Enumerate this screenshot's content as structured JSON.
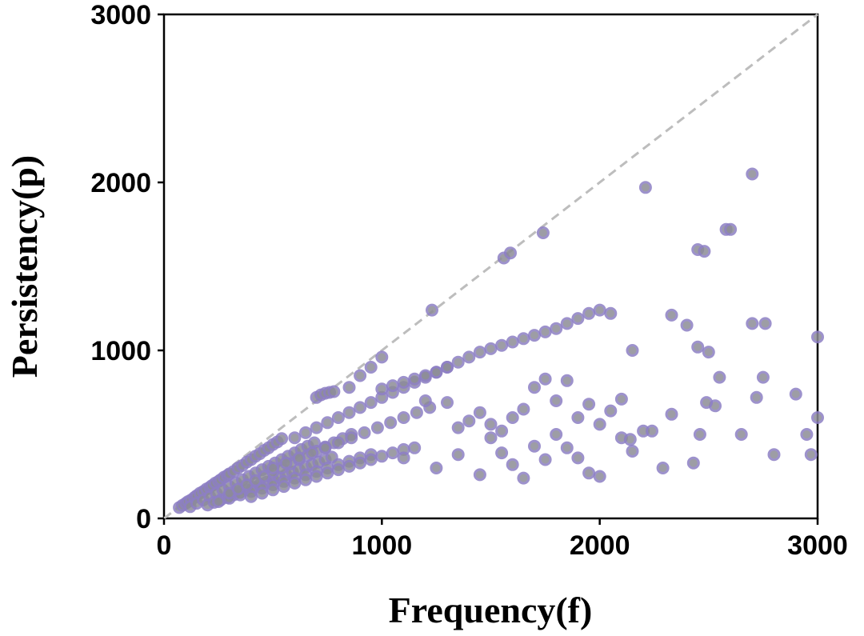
{
  "chart_data": {
    "type": "scatter",
    "title": "",
    "xlabel": "Frequency(f)",
    "ylabel": "Persistency(p)",
    "xlim": [
      0,
      3000
    ],
    "ylim": [
      0,
      3000
    ],
    "x_ticks": [
      "0",
      "1000",
      "2000",
      "3000"
    ],
    "y_ticks": [
      "0",
      "1000",
      "2000",
      "3000"
    ],
    "grid": false,
    "legend": "none",
    "reference_line": {
      "style": "dashed",
      "from": [
        0,
        0
      ],
      "to": [
        3000,
        3000
      ],
      "color": "#bdbdbd"
    },
    "marker": {
      "fill": "#8c8c96",
      "edge": "#8d7fc4",
      "opacity": 0.85
    },
    "series": [
      {
        "x": [
          70,
          85,
          100,
          110,
          125,
          140,
          150,
          165,
          180,
          195,
          210,
          220,
          235,
          250,
          260,
          275,
          290,
          300,
          320,
          340,
          360,
          380,
          400,
          420,
          440,
          460,
          480,
          500,
          520,
          540,
          120,
          150,
          180,
          210,
          240,
          270,
          300,
          330,
          360,
          390,
          420,
          450,
          480,
          510,
          540,
          570,
          600,
          630,
          660,
          690,
          200,
          230,
          260,
          290,
          320,
          350,
          380,
          410,
          440,
          470,
          500,
          530,
          560,
          590,
          620,
          650,
          680,
          710,
          740,
          770,
          250,
          300,
          350,
          400,
          450,
          500,
          550,
          600,
          650,
          700,
          750,
          800,
          850,
          900,
          950,
          300,
          340,
          380,
          420,
          460,
          500,
          540,
          580,
          620,
          660,
          700,
          740,
          780,
          820,
          860,
          400,
          450,
          500,
          550,
          600,
          650,
          700,
          750,
          800,
          850,
          900,
          950,
          1000,
          1050,
          1100,
          500,
          560,
          620,
          680,
          740,
          800,
          860,
          920,
          980,
          1040,
          1100,
          1160,
          1220,
          600,
          650,
          700,
          750,
          800,
          850,
          900,
          950,
          1000,
          1050,
          1100,
          1150,
          1200,
          1250,
          1300,
          700,
          720,
          740,
          760,
          780,
          850,
          900,
          950,
          1000,
          1000,
          1050,
          1100,
          1150,
          1200,
          1250,
          1300,
          1350,
          1400,
          1450,
          1500,
          1550,
          1600,
          1650,
          1700,
          1750,
          1800,
          1850,
          1900,
          1950,
          2000,
          2050,
          1230,
          1560,
          1590,
          1740,
          2210,
          2700,
          2580,
          2450,
          2480,
          1200,
          1300,
          1350,
          1400,
          1450,
          1500,
          1550,
          1600,
          1650,
          1700,
          1750,
          1800,
          1850,
          1900,
          1950,
          2000,
          2050,
          2100,
          2150,
          1100,
          1150,
          1250,
          1350,
          1450,
          1500,
          1550,
          1600,
          1650,
          1700,
          1750,
          1800,
          1850,
          1900,
          1950,
          2000,
          2100,
          2150,
          2200,
          2330,
          2400,
          2450,
          2500,
          2530,
          2550,
          2600,
          2650,
          2700,
          2720,
          2750,
          2760,
          2800,
          2900,
          2950,
          2970,
          3000,
          3000,
          2140,
          2240,
          2290,
          2330,
          2430,
          2460,
          2490
        ],
        "y": [
          65,
          78,
          90,
          100,
          110,
          125,
          135,
          150,
          160,
          175,
          185,
          195,
          210,
          220,
          230,
          245,
          255,
          265,
          280,
          300,
          315,
          335,
          350,
          370,
          385,
          405,
          420,
          440,
          455,
          475,
          70,
          90,
          110,
          130,
          150,
          170,
          190,
          210,
          230,
          250,
          270,
          290,
          310,
          330,
          350,
          370,
          390,
          410,
          430,
          450,
          80,
          95,
          110,
          125,
          140,
          155,
          170,
          185,
          200,
          215,
          230,
          245,
          260,
          275,
          290,
          305,
          320,
          335,
          350,
          365,
          100,
          120,
          140,
          160,
          180,
          200,
          220,
          240,
          260,
          280,
          300,
          320,
          340,
          360,
          380,
          150,
          175,
          200,
          225,
          250,
          275,
          300,
          325,
          350,
          375,
          400,
          425,
          450,
          475,
          500,
          130,
          150,
          170,
          190,
          210,
          230,
          250,
          270,
          290,
          310,
          330,
          350,
          370,
          390,
          410,
          300,
          330,
          360,
          390,
          420,
          450,
          480,
          510,
          540,
          570,
          600,
          630,
          660,
          480,
          510,
          540,
          570,
          600,
          630,
          660,
          690,
          720,
          750,
          780,
          810,
          840,
          870,
          900,
          720,
          735,
          745,
          750,
          755,
          780,
          850,
          900,
          960,
          770,
          790,
          810,
          830,
          850,
          870,
          900,
          930,
          960,
          990,
          1010,
          1030,
          1050,
          1070,
          1090,
          1110,
          1130,
          1160,
          1190,
          1220,
          1240,
          1220,
          1240,
          1550,
          1580,
          1700,
          1970,
          2050,
          1720,
          1600,
          1590,
          700,
          690,
          540,
          580,
          630,
          560,
          520,
          600,
          650,
          780,
          830,
          700,
          820,
          600,
          680,
          560,
          640,
          710,
          1000,
          360,
          420,
          300,
          380,
          260,
          480,
          390,
          320,
          240,
          430,
          350,
          500,
          420,
          360,
          270,
          250,
          480,
          400,
          520,
          1210,
          1150,
          1020,
          990,
          670,
          840,
          1720,
          500,
          1160,
          720,
          840,
          1160,
          380,
          740,
          500,
          380,
          600,
          1080,
          470,
          520,
          300,
          620,
          330,
          500,
          690
        ]
      }
    ]
  }
}
